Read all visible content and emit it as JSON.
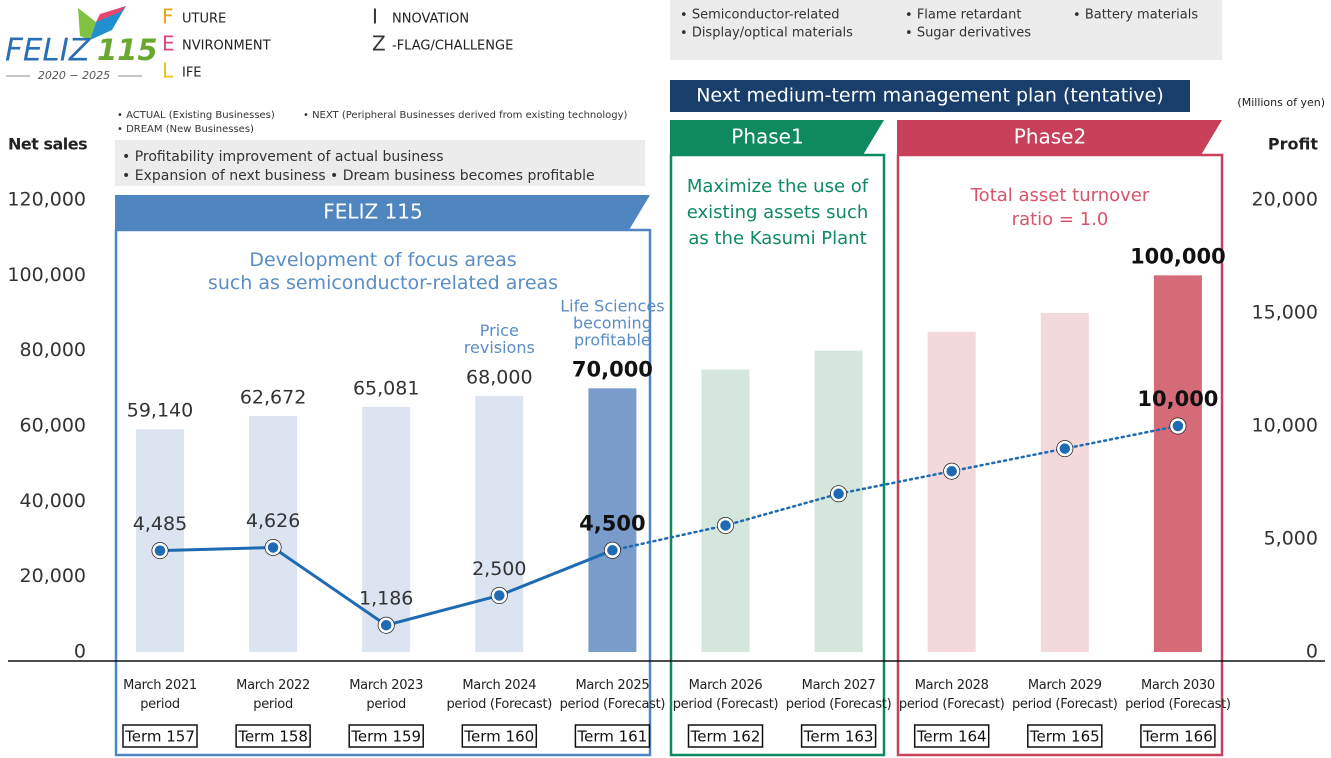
{
  "logo": {
    "name": "FELIZ",
    "number": "115",
    "years": "2020 − 2025"
  },
  "acronym": [
    {
      "letter": "F",
      "word": "UTURE",
      "color": "#e8a317"
    },
    {
      "letter": "E",
      "word": "NVIRONMENT",
      "color": "#e0457b"
    },
    {
      "letter": "L",
      "word": "IFE",
      "color": "#e8c317"
    },
    {
      "letter": "I",
      "word": "NNOVATION",
      "color": "#333333"
    },
    {
      "letter": "Z",
      "word": "-FLAG/CHALLENGE",
      "color": "#333333"
    }
  ],
  "focus_areas": [
    "Semiconductor-related",
    "Flame retardant",
    "Battery materials",
    "Display/optical materials",
    "Sugar derivatives"
  ],
  "plan_banner": "Next medium-term management plan (tentative)",
  "business_types": [
    "ACTUAL (Existing Businesses)",
    "NEXT (Peripheral Businesses derived from existing technology)",
    "DREAM (New Businesses)"
  ],
  "goals": [
    "Profitability improvement of actual business",
    "Expansion of next business",
    "Dream business becomes profitable"
  ],
  "phases": [
    {
      "title": "FELIZ 115",
      "text": "Development of focus areas\nsuch as semiconductor-related areas",
      "color": "#4f86c0",
      "text_color": "#5b8dc4"
    },
    {
      "title": "Phase1",
      "text": "Maximize the use of\nexisting assets such\nas the Kasumi Plant",
      "color": "#0f8a5f",
      "text_color": "#0f8a5f"
    },
    {
      "title": "Phase2",
      "text": "Total asset turnover\nratio = 1.0",
      "color": "#c8405a",
      "text_color": "#d9536a"
    }
  ],
  "chart_data": {
    "type": "bar_line",
    "categories": [
      "March 2021\nperiod",
      "March 2022\nperiod",
      "March 2023\nperiod",
      "March 2024\nperiod (Forecast)",
      "March 2025\nperiod (Forecast)",
      "March 2026\nperiod (Forecast)",
      "March 2027\nperiod (Forecast)",
      "March 2028\nperiod (Forecast)",
      "March 2029\nperiod (Forecast)",
      "March 2030\nperiod (Forecast)"
    ],
    "terms": [
      "Term 157",
      "Term 158",
      "Term 159",
      "Term 160",
      "Term 161",
      "Term 162",
      "Term 163",
      "Term 164",
      "Term 165",
      "Term 166"
    ],
    "unit": "(Millions of yen)",
    "ylim": [
      0,
      120000
    ],
    "yticks": [
      0,
      {
        "value": 20000,
        "label": "20,000"
      },
      {
        "value": 40000,
        "label": "40,000"
      },
      {
        "value": 60000,
        "label": "60,000"
      },
      {
        "value": 80000,
        "label": "80,000"
      },
      {
        "value": 100000,
        "label": "100,000"
      },
      {
        "value": 120000,
        "label": "120,000"
      }
    ],
    "y2lim": [
      0,
      20000
    ],
    "y2ticks": [
      0,
      {
        "value": 5000,
        "label": "5,000"
      },
      {
        "value": 10000,
        "label": "10,000"
      },
      {
        "value": 15000,
        "label": "15,000"
      },
      {
        "value": 20000,
        "label": "20,000"
      }
    ],
    "annotations": [
      {
        "text": "Price\nrevisions",
        "category": 3
      },
      {
        "text": "Life Sciences\nbecoming\nprofitable",
        "category": 4
      }
    ],
    "series": [
      {
        "name": "Net sales",
        "type": "bar",
        "colors": [
          "#dde4f1",
          "#dde4f1",
          "#dde4f1",
          "#dde4f1",
          "#7a9ccb",
          "#d5e6dc",
          "#d5e6dc",
          "#f4d9dc",
          "#f4d9dc",
          "#d46b77"
        ],
        "values": [
          59140,
          62672,
          65081,
          68000,
          70000,
          75000,
          80000,
          85000,
          90000,
          100000
        ],
        "value_labels": [
          "59,140",
          "62,672",
          "65,081",
          "68,000",
          "70,000",
          null,
          null,
          null,
          null,
          "100,000"
        ],
        "bold_labels": [
          false,
          false,
          false,
          false,
          true,
          false,
          false,
          false,
          false,
          true
        ]
      },
      {
        "name": "Profit",
        "type": "line",
        "axis": "y2",
        "color": "#1f6bb3",
        "dotted_from": 4,
        "values": [
          4485,
          4626,
          1186,
          2500,
          4500,
          5600,
          7000,
          8000,
          9000,
          10000
        ],
        "value_labels": [
          "4,485",
          "4,626",
          "1,186",
          "2,500",
          "4,500",
          null,
          null,
          null,
          null,
          "10,000"
        ],
        "bold_labels": [
          false,
          false,
          false,
          false,
          true,
          false,
          false,
          false,
          false,
          true
        ]
      }
    ]
  }
}
